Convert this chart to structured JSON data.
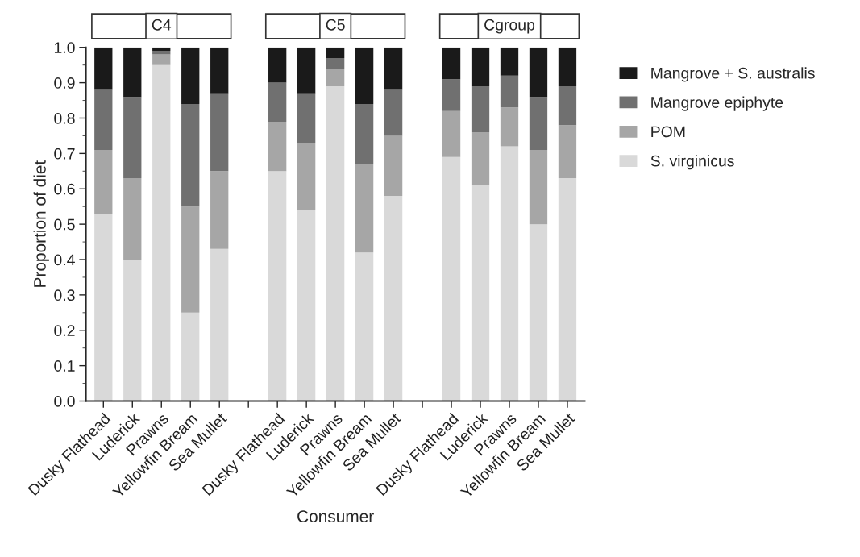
{
  "chart_data": {
    "type": "bar",
    "stacked": true,
    "categories": [
      "Dusky Flathead",
      "Luderick",
      "Prawns",
      "Yellowfin Bream",
      "Sea Mullet",
      null,
      "Dusky Flathead",
      "Luderick",
      "Prawns",
      "Yellowfin Bream",
      "Sea Mullet",
      null,
      "Dusky Flathead",
      "Luderick",
      "Prawns",
      "Yellowfin Bream",
      "Sea Mullet"
    ],
    "series": [
      {
        "name": "S. virginicus",
        "color": "#d9d9d9",
        "values": [
          0.53,
          0.4,
          0.95,
          0.25,
          0.43,
          null,
          0.65,
          0.54,
          0.89,
          0.42,
          0.58,
          null,
          0.69,
          0.61,
          0.72,
          0.5,
          0.63
        ]
      },
      {
        "name": "POM",
        "color": "#a6a6a6",
        "values": [
          0.18,
          0.23,
          0.03,
          0.3,
          0.22,
          null,
          0.14,
          0.19,
          0.05,
          0.25,
          0.17,
          null,
          0.13,
          0.15,
          0.11,
          0.21,
          0.15
        ]
      },
      {
        "name": "Mangrove epiphyte",
        "color": "#707070",
        "values": [
          0.17,
          0.23,
          0.01,
          0.29,
          0.22,
          null,
          0.11,
          0.14,
          0.03,
          0.17,
          0.13,
          null,
          0.09,
          0.13,
          0.09,
          0.15,
          0.11
        ]
      },
      {
        "name": "Mangrove + S. australis",
        "color": "#1a1a1a",
        "values": [
          0.12,
          0.14,
          0.01,
          0.16,
          0.13,
          null,
          0.1,
          0.13,
          0.03,
          0.16,
          0.12,
          null,
          0.09,
          0.11,
          0.08,
          0.14,
          0.11
        ]
      }
    ],
    "xlabel": "Consumer",
    "ylabel": "Proportion of diet",
    "ylim": [
      0,
      1.0
    ],
    "yticks": [
      {
        "value": 0,
        "label": "0.0"
      },
      {
        "value": 0.1,
        "label": "0.1"
      },
      {
        "value": 0.2,
        "label": "0.2"
      },
      {
        "value": 0.3,
        "label": "0.3"
      },
      {
        "value": 0.4,
        "label": "0.4"
      },
      {
        "value": 0.5,
        "label": "0.5"
      },
      {
        "value": 0.6,
        "label": "0.6"
      },
      {
        "value": 0.7,
        "label": "0.7"
      },
      {
        "value": 0.8,
        "label": "0.8"
      },
      {
        "value": 0.9,
        "label": "0.9"
      },
      {
        "value": 1.0,
        "label": "1.0"
      }
    ],
    "annotations": [
      "C4",
      "C5",
      "Cgroup"
    ],
    "legend": "right",
    "grid": false
  }
}
